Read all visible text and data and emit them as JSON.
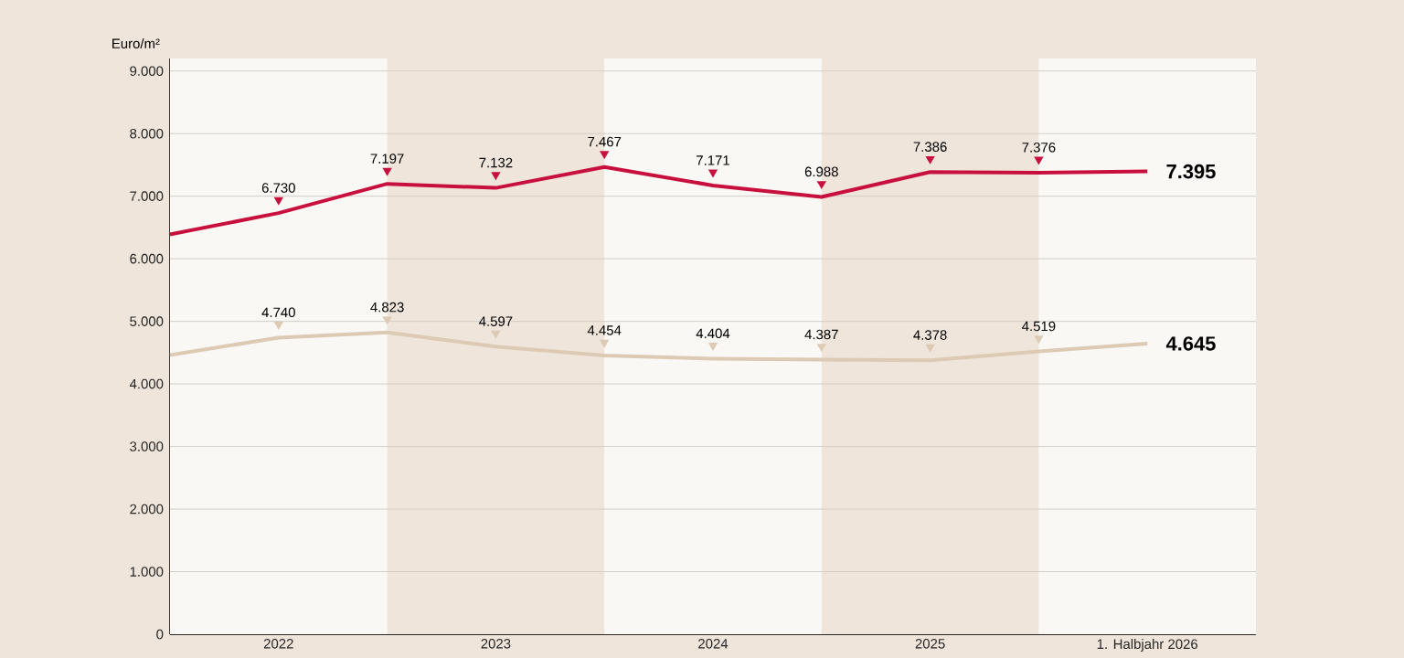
{
  "chart_data": {
    "type": "line",
    "ylabel": "Euro/m²",
    "x": [
      "2022-01",
      "2022-07",
      "2023-01",
      "2023-07",
      "2024-01",
      "2024-07",
      "2025-01",
      "2025-07",
      "2026-01",
      "2026-07"
    ],
    "xlim": [
      "2022-01",
      "2027-01"
    ],
    "xticks": [
      {
        "value": "2022-07",
        "label": "2022"
      },
      {
        "value": "2023-07",
        "label": "2023"
      },
      {
        "value": "2024-07",
        "label": "2024"
      },
      {
        "value": "2025-07",
        "label": "2025"
      },
      {
        "value": "2026-07",
        "label": "1. Halbjahr 2026"
      }
    ],
    "ylim": [
      0,
      9200
    ],
    "yticks": [
      {
        "value": 0,
        "label": "0"
      },
      {
        "value": 1000,
        "label": "1.000"
      },
      {
        "value": 2000,
        "label": "2.000"
      },
      {
        "value": 3000,
        "label": "3.000"
      },
      {
        "value": 4000,
        "label": "4.000"
      },
      {
        "value": 5000,
        "label": "5.000"
      },
      {
        "value": 6000,
        "label": "6.000"
      },
      {
        "value": 7000,
        "label": "7.000"
      },
      {
        "value": 8000,
        "label": "8.000"
      },
      {
        "value": 9000,
        "label": "9.000"
      }
    ],
    "series": [
      {
        "color": "#c8103e",
        "values": [
          6390,
          6730,
          7197,
          7132,
          7467,
          7171,
          6988,
          7386,
          7376,
          7395
        ],
        "value_labels": [
          null,
          "6.730",
          "7.197",
          "7.132",
          "7.467",
          "7.171",
          "6.988",
          "7.386",
          "7.376",
          "7.395"
        ]
      },
      {
        "color": "#dccab5",
        "values": [
          4460,
          4740,
          4823,
          4597,
          4454,
          4404,
          4387,
          4378,
          4519,
          4645
        ],
        "value_labels": [
          null,
          "4.740",
          "4.823",
          "4.597",
          "4.454",
          "4.404",
          "4.387",
          "4.378",
          "4.519",
          "4.645"
        ]
      }
    ],
    "bands": [
      {
        "axis": "x",
        "from": "2023-01",
        "to": "2024-01",
        "color": "#efe5da"
      },
      {
        "axis": "x",
        "from": "2025-01",
        "to": "2026-01",
        "color": "#efe5da"
      }
    ],
    "grid": "y",
    "marker": "none",
    "line_style": "solid"
  }
}
